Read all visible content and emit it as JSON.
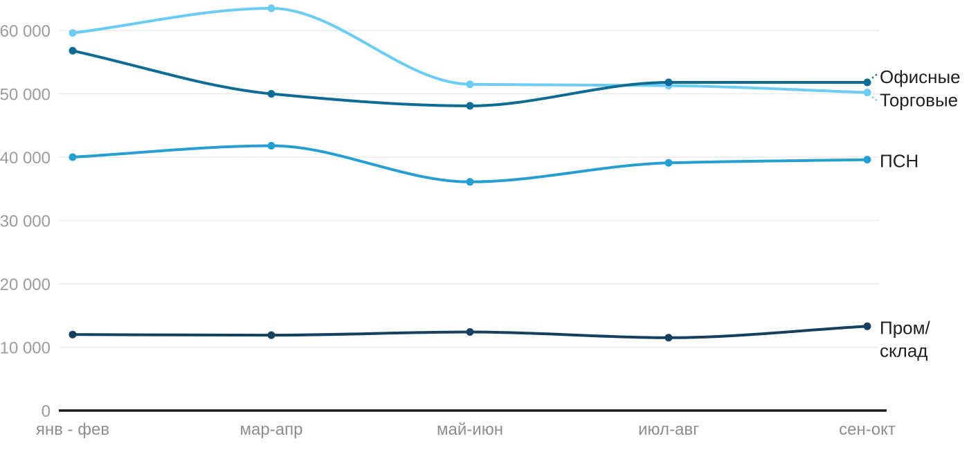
{
  "page": {
    "background": "#ffffff"
  },
  "chart_data": {
    "type": "line",
    "title": "",
    "xlabel": "",
    "ylabel": "",
    "curve": "smooth-monotone",
    "grid": "horizontal",
    "legend_position": "right-edge-labels",
    "categories": [
      "янв - фев",
      "мар-апр",
      "май-июн",
      "июл-авг",
      "сен-окт"
    ],
    "y_axis": {
      "ticks": [
        0,
        10000,
        20000,
        30000,
        40000,
        50000,
        60000
      ],
      "labels": [
        "0",
        "10 000",
        "20 000",
        "30 000",
        "40 000",
        "50 000",
        "60 000"
      ],
      "range": [
        0,
        66000
      ]
    },
    "series": [
      {
        "name": "Офисные",
        "color": "#0d6b94",
        "values": [
          56800,
          50000,
          48100,
          51800,
          51800
        ],
        "label_lines": [
          "Офисные"
        ],
        "leader": "up"
      },
      {
        "name": "Торговые",
        "color": "#6bcdf4",
        "values": [
          59600,
          63500,
          51500,
          51300,
          50200
        ],
        "label_lines": [
          "Торговые"
        ],
        "leader": "down"
      },
      {
        "name": "ПСН",
        "color": "#259fd1",
        "values": [
          40000,
          41800,
          36100,
          39100,
          39600
        ],
        "label_lines": [
          "ПСН"
        ],
        "leader": "none"
      },
      {
        "name": "Пром/склад",
        "color": "#16405f",
        "values": [
          12000,
          11900,
          12400,
          11500,
          13300
        ],
        "label_lines": [
          "Пром/",
          "склад"
        ],
        "leader": "none"
      }
    ],
    "colors": {
      "grid": "#eaeaea",
      "axis_line": "#1c1c1c",
      "tick_label": "#9c9c9c",
      "x_tick_label": "#8e8e8e",
      "series_label": "#1f1f1f",
      "background": "#ffffff"
    }
  }
}
